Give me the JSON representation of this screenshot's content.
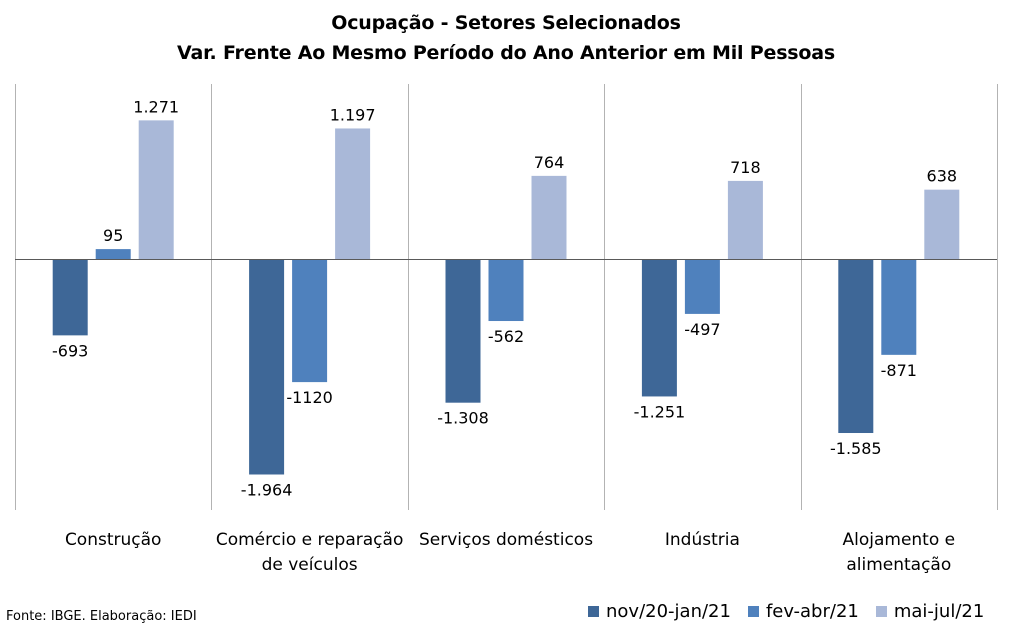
{
  "title": "Ocupação - Setores Selecionados",
  "subtitle": "Var. Frente Ao Mesmo Período do Ano Anterior em Mil Pessoas",
  "source": "Fonte: IBGE. Elaboração: IEDI",
  "colors": [
    "#3e6797",
    "#4f81bd",
    "#a9b8d8"
  ],
  "chart_data": {
    "type": "bar",
    "title": "Ocupação - Setores Selecionados",
    "subtitle": "Var. Frente Ao Mesmo Período do Ano Anterior em Mil Pessoas",
    "categories": [
      [
        "Construção"
      ],
      [
        "Comércio e reparação",
        "de veículos"
      ],
      [
        "Serviços domésticos"
      ],
      [
        "Indústria"
      ],
      [
        "Alojamento e",
        "alimentação"
      ]
    ],
    "series": [
      {
        "name": "nov/20-jan/21",
        "values": [
          -693,
          -1964,
          -1308,
          -1251,
          -1585
        ],
        "labels": [
          "-693",
          "-1.964",
          "-1.308",
          "-1.251",
          "-1.585"
        ]
      },
      {
        "name": "fev-abr/21",
        "values": [
          95,
          -1120,
          -562,
          -497,
          -871
        ],
        "labels": [
          "95",
          "-1120",
          "-562",
          "-497",
          "-871"
        ]
      },
      {
        "name": "mai-jul/21",
        "values": [
          1271,
          1197,
          764,
          718,
          638
        ],
        "labels": [
          "1.271",
          "1.197",
          "764",
          "718",
          "638"
        ]
      }
    ],
    "xlabel": "",
    "ylabel": "",
    "ylim": [
      -2300,
      1600
    ],
    "grid": false,
    "legend": "bottom-right"
  }
}
